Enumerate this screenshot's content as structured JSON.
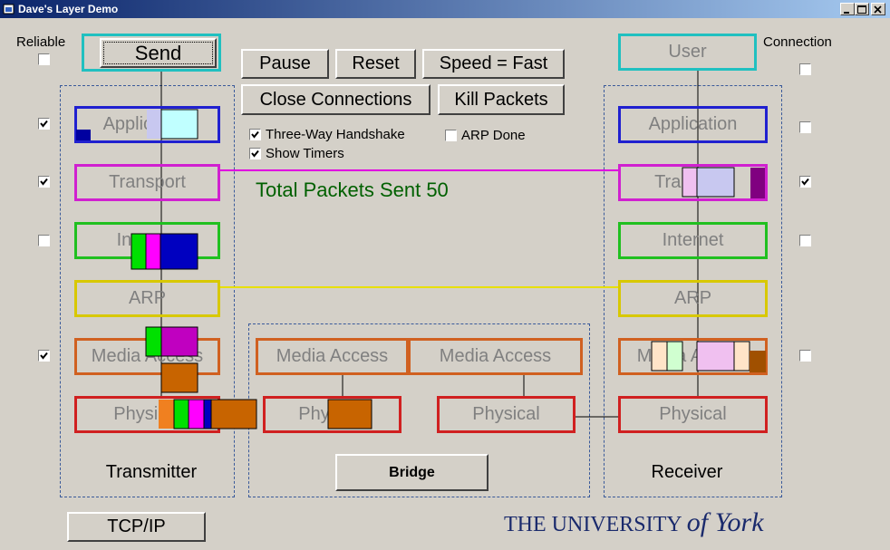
{
  "window": {
    "title": "Dave's Layer Demo"
  },
  "checkbox_headers": {
    "left": "Reliable",
    "right": "Connection"
  },
  "left_checkboxes": [
    false,
    true,
    true,
    false,
    true
  ],
  "right_checkboxes": [
    false,
    false,
    true,
    false,
    false
  ],
  "buttons": {
    "send": "Send",
    "pause": "Pause",
    "reset": "Reset",
    "speed": "Speed = Fast",
    "close": "Close Connections",
    "kill": "Kill Packets",
    "bridge": "Bridge",
    "protocol": "TCP/IP"
  },
  "options": [
    {
      "label": "Three-Way Handshake",
      "checked": true
    },
    {
      "label": "Show Timers",
      "checked": true
    },
    {
      "label": "ARP Done",
      "checked": false
    }
  ],
  "status": "Total Packets Sent 50",
  "transmitter": {
    "label": "Transmitter",
    "layers": [
      "Application",
      "Transport",
      "Internet",
      "ARP",
      "Media Access",
      "Physical"
    ]
  },
  "receiver": {
    "label": "Receiver",
    "layers": [
      "User",
      "Application",
      "Transport",
      "Internet",
      "ARP",
      "Media Access",
      "Physical"
    ]
  },
  "bridge": {
    "layers": [
      "Media Access",
      "Media Access",
      "Physical",
      "Physical"
    ]
  },
  "logo": {
    "main": "THE UNIVERSITY",
    "script": "of York"
  }
}
